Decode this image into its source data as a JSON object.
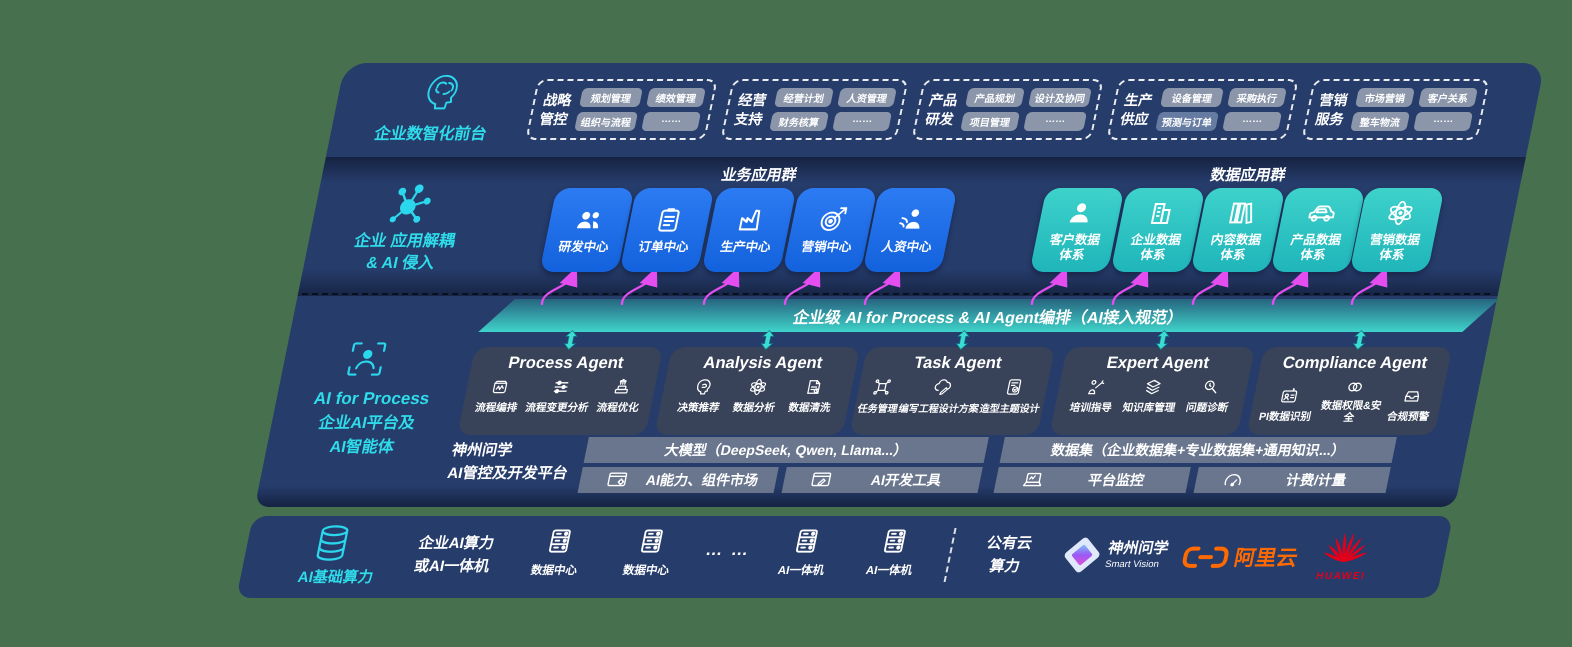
{
  "colors": {
    "background_green": "#47714E",
    "panel_navy": "#263C6B",
    "business_blue": "#1E6FEB",
    "data_teal": "#2FC8C6",
    "bus_teal_top": "#27647F",
    "bus_teal_bottom": "#3FD4CB",
    "arrow_magenta": "#E44EF0",
    "label_cyan": "#2FDCEA",
    "chip_grey": "#9AA3B3",
    "agent_card_slate": "#394258",
    "platform_bar_grey": "#768093",
    "aliyun_orange": "#FF6A00",
    "huawei_red": "#E2001A"
  },
  "front_layer": {
    "label": "企业数智化前台",
    "icon": "brain-head-icon",
    "groups": [
      {
        "name_lines": [
          "战略",
          "管控"
        ],
        "chips": [
          "规划管理",
          "绩效管理",
          "组织与流程",
          "……"
        ]
      },
      {
        "name_lines": [
          "经营",
          "支持"
        ],
        "chips": [
          "经营计划",
          "人资管理",
          "财务核算",
          "……"
        ]
      },
      {
        "name_lines": [
          "产品",
          "研发"
        ],
        "chips": [
          "产品规划",
          "设计及协同",
          "项目管理",
          "……"
        ]
      },
      {
        "name_lines": [
          "生产",
          "供应"
        ],
        "chips": [
          "设备管理",
          "采购执行",
          "预测与订单",
          "……"
        ]
      },
      {
        "name_lines": [
          "营销",
          "服务"
        ],
        "chips": [
          "市场营销",
          "客户关系",
          "整车物流",
          "……"
        ]
      }
    ]
  },
  "app_layer": {
    "label_lines": [
      "企业 应用解耦",
      "& AI 侵入"
    ],
    "icon": "molecule-icon",
    "business_group": {
      "title": "业务应用群",
      "apps": [
        {
          "label": "研发中心",
          "icon": "team-icon"
        },
        {
          "label": "订单中心",
          "icon": "clipboard-icon"
        },
        {
          "label": "生产中心",
          "icon": "factory-icon"
        },
        {
          "label": "营销中心",
          "icon": "target-icon"
        },
        {
          "label": "人资中心",
          "icon": "hr-icon"
        }
      ]
    },
    "data_group": {
      "title": "数据应用群",
      "apps": [
        {
          "label_lines": [
            "客户数据",
            "体系"
          ],
          "icon": "person-icon"
        },
        {
          "label_lines": [
            "企业数据",
            "体系"
          ],
          "icon": "building-icon"
        },
        {
          "label_lines": [
            "内容数据",
            "体系"
          ],
          "icon": "books-icon"
        },
        {
          "label_lines": [
            "产品数据",
            "体系"
          ],
          "icon": "car-icon"
        },
        {
          "label_lines": [
            "营销数据",
            "体系"
          ],
          "icon": "atom-icon"
        }
      ]
    }
  },
  "ai_bus": {
    "label": "企业级 AI for Process & AI Agent编排（AI接入规范）"
  },
  "agent_layer": {
    "label_lines": [
      "AI for Process",
      "企业AI平台及",
      "AI智能体"
    ],
    "icon": "person-frame-icon",
    "agents": [
      {
        "title": "Process Agent",
        "items": [
          {
            "label": "流程编排",
            "icon": "flow-icon"
          },
          {
            "label": "流程变更分析",
            "icon": "change-analysis-icon"
          },
          {
            "label": "流程优化",
            "icon": "optimize-icon"
          }
        ]
      },
      {
        "title": "Analysis Agent",
        "items": [
          {
            "label": "决策推荐",
            "icon": "decision-icon"
          },
          {
            "label": "数据分析",
            "icon": "data-analysis-icon"
          },
          {
            "label": "数据清洗",
            "icon": "data-clean-icon"
          }
        ]
      },
      {
        "title": "Task Agent",
        "items": [
          {
            "label": "任务管理",
            "icon": "task-icon"
          },
          {
            "label": "编写工程设计方案",
            "icon": "engineering-icon"
          },
          {
            "label": "造型主题设计",
            "icon": "styling-icon"
          }
        ]
      },
      {
        "title": "Expert Agent",
        "items": [
          {
            "label": "培训指导",
            "icon": "training-icon"
          },
          {
            "label": "知识库管理",
            "icon": "knowledge-icon"
          },
          {
            "label": "问题诊断",
            "icon": "diagnosis-icon"
          }
        ]
      },
      {
        "title": "Compliance Agent",
        "items": [
          {
            "label": "PI数据识别",
            "icon": "pi-data-icon"
          },
          {
            "label": "数据权限&安全",
            "icon": "permission-icon"
          },
          {
            "label": "合规预警",
            "icon": "compliance-warning-icon"
          }
        ]
      }
    ]
  },
  "platform_layer": {
    "name_lines": [
      "神州问学",
      "AI管控及开发平台"
    ],
    "model_bar": "大模型（DeepSeek, Qwen, Llama...）",
    "capability_bar": "AI能力、组件市场",
    "devtool_bar": "AI开发工具",
    "dataset_bar": "数据集（企业数据集+专业数据集+通用知识...）",
    "monitor_bar": "平台监控",
    "billing_bar": "计费/计量"
  },
  "infra_layer": {
    "label": "AI基础算力",
    "icon": "database-icon",
    "compute_lines": [
      "企业AI算力",
      "或AI一体机"
    ],
    "nodes": [
      {
        "label": "数据中心",
        "icon": "server-icon"
      },
      {
        "label": "数据中心",
        "icon": "server-icon"
      },
      {
        "label": "AI一体机",
        "icon": "server-icon"
      },
      {
        "label": "AI一体机",
        "icon": "server-icon"
      }
    ],
    "dots": "… …",
    "public_cloud_lines": [
      "公有云",
      "算力"
    ],
    "vendors": {
      "smartvision": {
        "name": "神州问学",
        "sub": "Smart Vision"
      },
      "aliyun": {
        "name": "阿里云"
      },
      "huawei": {
        "name": "HUAWEI"
      }
    }
  }
}
